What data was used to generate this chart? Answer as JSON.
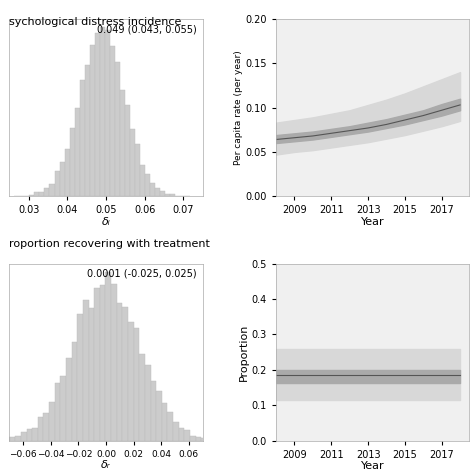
{
  "title_top": "sychological distress incidence",
  "title_bottom": "roportion recovering with treatment",
  "hist1_annotation": "0.049 (0.043, 0.055)",
  "hist1_xlim": [
    0.025,
    0.075
  ],
  "hist1_xticks": [
    0.03,
    0.04,
    0.05,
    0.06,
    0.07
  ],
  "hist1_xlabel": "δᵢ",
  "hist1_mean": 0.049,
  "hist1_std": 0.0058,
  "hist2_annotation": "0.0001 (-0.025, 0.025)",
  "hist2_xlim": [
    -0.07,
    0.07
  ],
  "hist2_xticks": [
    -0.06,
    -0.04,
    -0.02,
    0.0,
    0.02,
    0.04,
    0.06
  ],
  "hist2_xlabel": "δᵣ",
  "hist2_mean": 0.0001,
  "hist2_std": 0.0245,
  "line1_years": [
    2008,
    2009,
    2010,
    2011,
    2012,
    2013,
    2014,
    2015,
    2016,
    2017,
    2018
  ],
  "line1_mean": [
    0.064,
    0.066,
    0.068,
    0.071,
    0.074,
    0.077,
    0.081,
    0.086,
    0.091,
    0.097,
    0.103
  ],
  "line1_ci50_low": [
    0.06,
    0.062,
    0.064,
    0.067,
    0.07,
    0.073,
    0.077,
    0.081,
    0.086,
    0.091,
    0.097
  ],
  "line1_ci50_high": [
    0.069,
    0.071,
    0.073,
    0.076,
    0.079,
    0.083,
    0.087,
    0.092,
    0.097,
    0.104,
    0.11
  ],
  "line1_ci95_low": [
    0.047,
    0.05,
    0.052,
    0.055,
    0.058,
    0.061,
    0.065,
    0.069,
    0.074,
    0.079,
    0.085
  ],
  "line1_ci95_high": [
    0.083,
    0.086,
    0.089,
    0.093,
    0.097,
    0.103,
    0.109,
    0.116,
    0.124,
    0.132,
    0.14
  ],
  "line1_ylabel": "Per capita rate (per year)",
  "line1_ylim": [
    0.0,
    0.2
  ],
  "line1_yticks": [
    0.0,
    0.05,
    0.1,
    0.15,
    0.2
  ],
  "line2_years": [
    2008,
    2009,
    2010,
    2011,
    2012,
    2013,
    2014,
    2015,
    2016,
    2017,
    2018
  ],
  "line2_mean": [
    0.185,
    0.185,
    0.185,
    0.185,
    0.185,
    0.185,
    0.185,
    0.185,
    0.185,
    0.185,
    0.185
  ],
  "line2_ci50_low": [
    0.163,
    0.163,
    0.163,
    0.163,
    0.163,
    0.163,
    0.163,
    0.163,
    0.163,
    0.163,
    0.163
  ],
  "line2_ci50_high": [
    0.2,
    0.2,
    0.2,
    0.2,
    0.2,
    0.2,
    0.2,
    0.2,
    0.2,
    0.2,
    0.2
  ],
  "line2_ci95_low": [
    0.115,
    0.115,
    0.115,
    0.115,
    0.115,
    0.115,
    0.115,
    0.115,
    0.115,
    0.115,
    0.115
  ],
  "line2_ci95_high": [
    0.26,
    0.26,
    0.26,
    0.26,
    0.26,
    0.26,
    0.26,
    0.26,
    0.26,
    0.26,
    0.26
  ],
  "line2_ylabel": "Proportion",
  "line2_ylim": [
    0.0,
    0.5
  ],
  "line2_yticks": [
    0.0,
    0.1,
    0.2,
    0.3,
    0.4,
    0.5
  ],
  "year_ticks": [
    2009,
    2011,
    2013,
    2015,
    2017
  ],
  "xlabel_right": "Year",
  "bar_color": "#cccccc",
  "bar_edge_color": "#bbbbbb",
  "line_color": "#555555",
  "ci50_color": "#aaaaaa",
  "ci95_color": "#d8d8d8",
  "panel_bg": "#f0f0f0",
  "bg_color": "#ffffff",
  "n_samples": 10000
}
